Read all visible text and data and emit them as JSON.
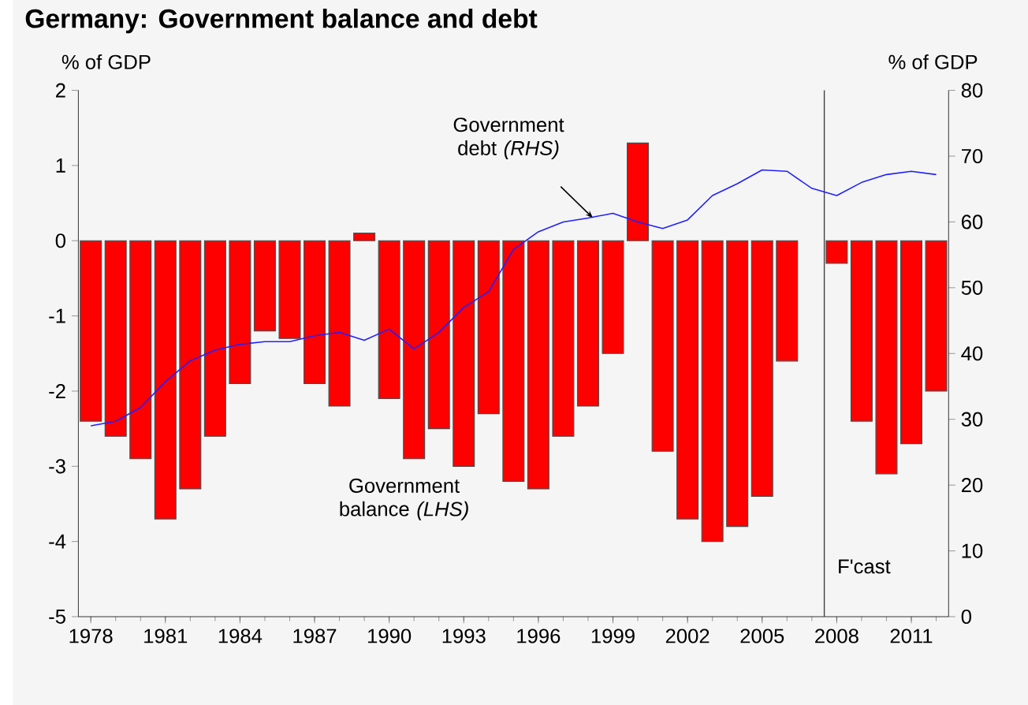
{
  "chart_data": {
    "type": "bar",
    "title": "Germany: Government balance and debt",
    "ylabel": "% of GDP",
    "y2label": "% of GDP",
    "x": [
      1978,
      1979,
      1980,
      1981,
      1982,
      1983,
      1984,
      1985,
      1986,
      1987,
      1988,
      1989,
      1990,
      1991,
      1992,
      1993,
      1994,
      1995,
      1996,
      1997,
      1998,
      1999,
      2000,
      2001,
      2002,
      2003,
      2004,
      2005,
      2006,
      2007,
      2008,
      2009,
      2010,
      2011,
      2012
    ],
    "series": [
      {
        "color": "#ff0000",
        "values": [
          -2.4,
          -2.6,
          -2.9,
          -3.7,
          -3.3,
          -2.6,
          -1.9,
          -1.2,
          -1.3,
          -1.9,
          -2.2,
          0.1,
          -2.1,
          -2.9,
          -2.5,
          -3.0,
          -2.3,
          -3.2,
          -3.3,
          -2.6,
          -2.2,
          -1.5,
          1.3,
          -2.8,
          -3.7,
          -4.0,
          -3.8,
          -3.4,
          -1.6,
          null,
          -0.3,
          -2.4,
          -3.1,
          -2.7,
          -2.0
        ]
      },
      {
        "type": "line",
        "axis": "y2",
        "color": "#2020ff",
        "values": [
          29,
          29.7,
          31.8,
          35.7,
          38.9,
          40.5,
          41.4,
          41.8,
          41.8,
          42.7,
          43.2,
          42,
          43.7,
          40.7,
          43.2,
          47,
          49.4,
          55.8,
          58.5,
          60,
          60.6,
          61.3,
          60,
          59,
          60.3,
          64,
          65.8,
          67.9,
          67.7,
          65.1,
          64,
          66,
          67.2,
          67.7,
          67.2
        ]
      }
    ],
    "xlim": [
      1977.5,
      2012.5
    ],
    "xticks": [
      1978,
      1981,
      1984,
      1987,
      1990,
      1993,
      1996,
      1999,
      2002,
      2005,
      2008,
      2011
    ],
    "ylim": [
      -5,
      2
    ],
    "yticks": [
      -5,
      -4,
      -3,
      -2,
      -1,
      0,
      1,
      2
    ],
    "y2lim": [
      0,
      80
    ],
    "y2ticks": [
      0,
      10,
      20,
      30,
      40,
      50,
      60,
      70,
      80
    ],
    "ref_lines": [
      {
        "axis": "x",
        "value": 2007.5,
        "label": "F'cast",
        "color": "#404040"
      }
    ],
    "annotations": [
      "Government debt *(RHS)*",
      "Government balance *(LHS)*"
    ],
    "grid": false
  }
}
